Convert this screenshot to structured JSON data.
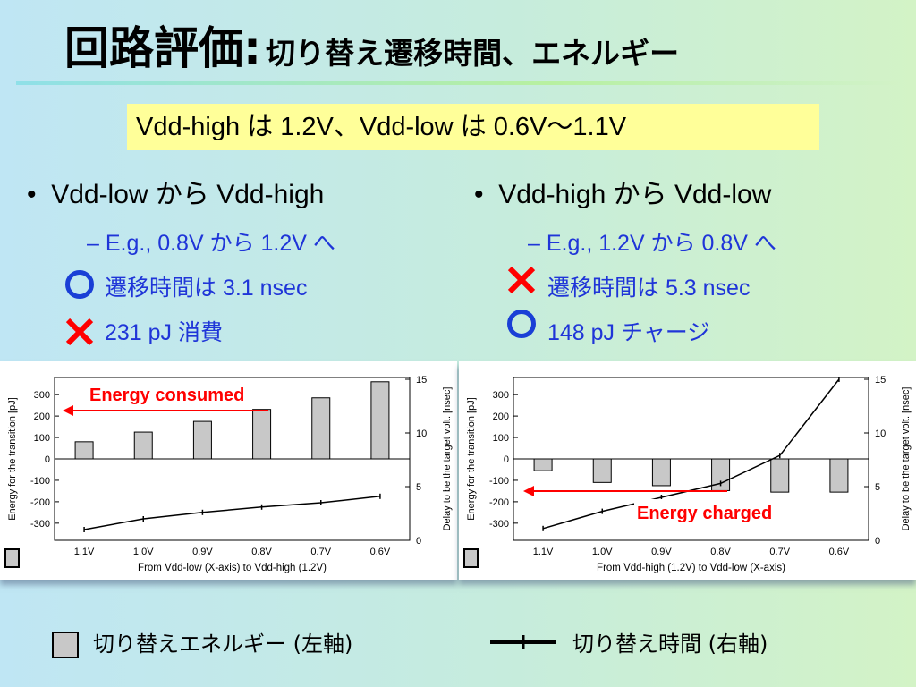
{
  "title": {
    "main": "回路評価:",
    "sub": "切り替え遷移時間、エネルギー"
  },
  "banner": "Vdd-high は 1.2V、Vdd-low は 0.6V～1.1V",
  "left": {
    "bullet": "Vdd-low から Vdd-high",
    "example": "– E.g., 0.8V から 1.2V へ",
    "pro": "遷移時間は 3.1 nsec",
    "con": "231 pJ 消費"
  },
  "right": {
    "bullet": "Vdd-high から Vdd-low",
    "example": "– E.g., 1.2V から 0.8V へ",
    "con": "遷移時間は 5.3 nsec",
    "pro": "148 pJ チャージ"
  },
  "legend": {
    "energy": "切り替えエネルギー (左軸)",
    "time": "切り替え時間 (右軸)"
  },
  "colors": {
    "accent_red": "#ff0000",
    "accent_blue": "#1f35d8",
    "banner": "#ffff99"
  },
  "chart_data": [
    {
      "type": "bar+line",
      "categories": [
        "1.1V",
        "1.0V",
        "0.9V",
        "0.8V",
        "0.7V",
        "0.6V"
      ],
      "series": [
        {
          "axis": "left",
          "type": "bar",
          "values": [
            80,
            125,
            175,
            231,
            285,
            360
          ]
        },
        {
          "axis": "right",
          "type": "line",
          "values": [
            1.0,
            2.0,
            2.6,
            3.1,
            3.5,
            4.1
          ]
        }
      ],
      "xlabel": "From Vdd-low (X-axis) to Vdd-high (1.2V)",
      "ylabel": "Energy for the transition [pJ]",
      "y2label": "Delay to be the target volt. [nsec]",
      "ylim": [
        -380,
        380
      ],
      "y2lim": [
        0,
        15
      ],
      "yticks": [
        300,
        200,
        100,
        0,
        -100,
        -200,
        -300
      ],
      "y2ticks": [
        15,
        10,
        5,
        0
      ],
      "annotation": "Energy consumed"
    },
    {
      "type": "bar+line",
      "categories": [
        "1.1V",
        "1.0V",
        "0.9V",
        "0.8V",
        "0.7V",
        "0.6V"
      ],
      "series": [
        {
          "axis": "left",
          "type": "bar",
          "values": [
            -55,
            -110,
            -125,
            -148,
            -155,
            -155
          ]
        },
        {
          "axis": "right",
          "type": "line",
          "values": [
            1.1,
            2.7,
            4.0,
            5.3,
            7.9,
            15.0
          ]
        }
      ],
      "xlabel": "From Vdd-high (1.2V) to Vdd-low (X-axis)",
      "ylabel": "Energy for the transition [pJ]",
      "y2label": "Delay to be the target volt. [nsec]",
      "ylim": [
        -380,
        380
      ],
      "y2lim": [
        0,
        15
      ],
      "yticks": [
        300,
        200,
        100,
        0,
        -100,
        -200,
        -300
      ],
      "y2ticks": [
        15,
        10,
        5,
        0
      ],
      "annotation": "Energy charged"
    }
  ]
}
